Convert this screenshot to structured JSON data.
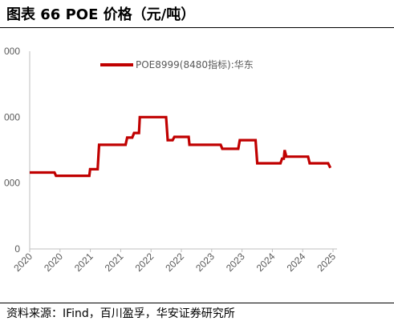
{
  "title": "图表 66 POE 价格（元/吨）",
  "source": "资料来源：IFind，百川盈孚，华安证券研究所",
  "chart_data": {
    "type": "line",
    "series": [
      {
        "name": "POE8999(8480指标):华东",
        "color": "#c00000",
        "points": [
          [
            "2020-01-01",
            11600
          ],
          [
            "2020-06-01",
            11600
          ],
          [
            "2020-06-10",
            11100
          ],
          [
            "2020-12-31",
            11100
          ],
          [
            "2021-01-05",
            12100
          ],
          [
            "2021-02-20",
            12100
          ],
          [
            "2021-03-01",
            15800
          ],
          [
            "2021-08-10",
            15800
          ],
          [
            "2021-08-20",
            16900
          ],
          [
            "2021-09-20",
            16900
          ],
          [
            "2021-10-01",
            17600
          ],
          [
            "2021-10-31",
            17600
          ],
          [
            "2021-11-05",
            20000
          ],
          [
            "2022-04-15",
            20000
          ],
          [
            "2022-04-25",
            16500
          ],
          [
            "2022-05-25",
            16500
          ],
          [
            "2022-06-05",
            17000
          ],
          [
            "2022-08-31",
            17000
          ],
          [
            "2022-09-05",
            15800
          ],
          [
            "2023-03-15",
            15800
          ],
          [
            "2023-03-25",
            15200
          ],
          [
            "2023-07-01",
            15200
          ],
          [
            "2023-07-10",
            16500
          ],
          [
            "2023-10-15",
            16500
          ],
          [
            "2023-10-25",
            13000
          ],
          [
            "2024-03-15",
            13000
          ],
          [
            "2024-03-25",
            13700
          ],
          [
            "2024-04-05",
            13700
          ],
          [
            "2024-04-10",
            15000
          ],
          [
            "2024-04-20",
            14000
          ],
          [
            "2024-08-31",
            14000
          ],
          [
            "2024-09-10",
            13000
          ],
          [
            "2025-01-01",
            13000
          ],
          [
            "2025-01-15",
            12300
          ]
        ]
      }
    ],
    "x_ticks": [
      "2020",
      "2020",
      "2021",
      "2021",
      "2022",
      "2022",
      "2023",
      "2023",
      "2024",
      "2024",
      "2025"
    ],
    "y_tick_labels": [
      "0",
      "000",
      "000",
      "000"
    ],
    "y_tick_values": [
      0,
      10000,
      20000,
      30000
    ],
    "ylim": [
      0,
      30000
    ],
    "xlim": [
      "2020-01-01",
      "2025-01-31"
    ],
    "legend_position": "top",
    "grid": false
  }
}
